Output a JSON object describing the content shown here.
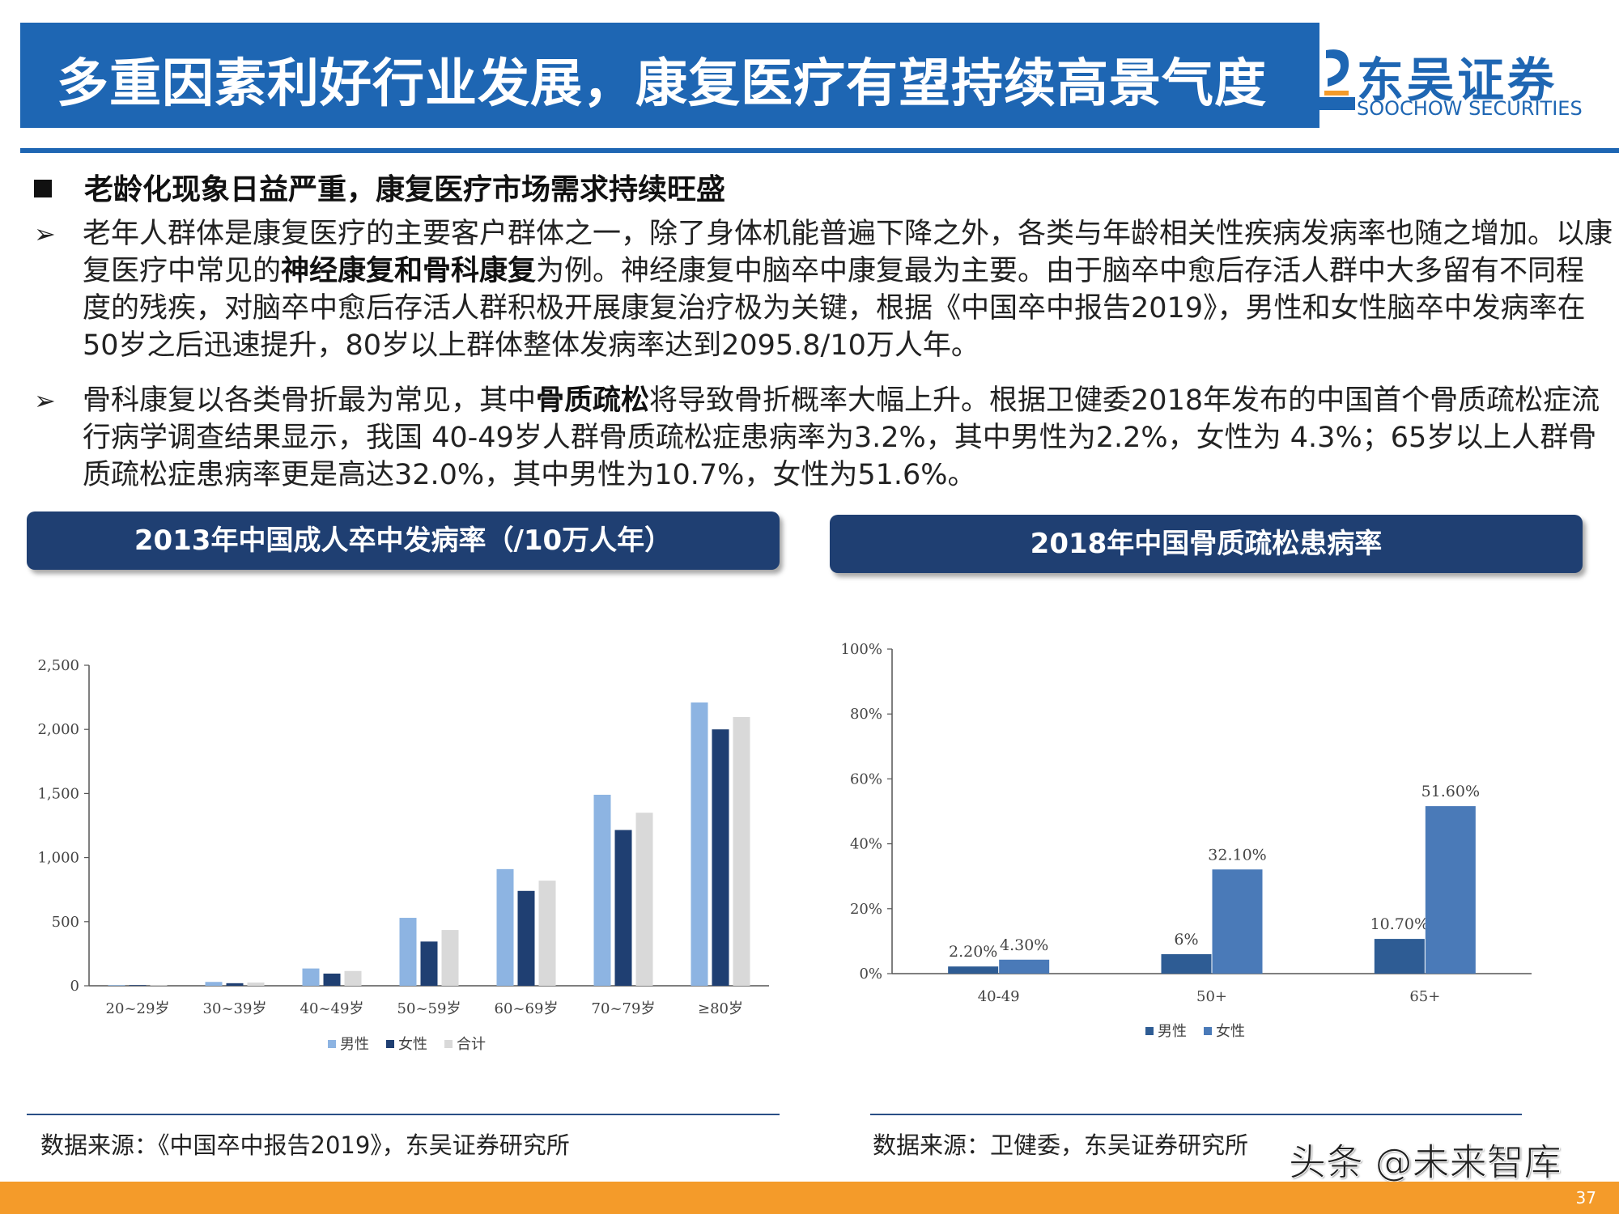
{
  "header": {
    "title": "多重因素利好行业发展，康复医疗有望持续高景气度",
    "logo_cn": "东吴证券",
    "logo_en": "SOOCHOW SECURITIES"
  },
  "heading": "老龄化现象日益严重，康复医疗市场需求持续旺盛",
  "bullet_symbol": "➢",
  "para1": {
    "t1": "老年人群体是康复医疗的主要客户群体之一，除了身体机能普遍下降之外，各类与年龄相关性疾病发病率也随之增加。以康复医疗中常见的",
    "b1": "神经康复和骨科康复",
    "t2": "为例。神经康复中脑卒中康复最为主要。由于脑卒中愈后存活人群中大多留有不同程度的残疾，对脑卒中愈后存活人群积极开展康复治疗极为关键，根据《中国卒中报告2019》，男性和女性脑卒中发病率在50岁之后迅速提升，80岁以上群体整体发病率达到2095.8/10万人年。"
  },
  "para2": {
    "t1": "骨科康复以各类骨折最为常见，其中",
    "b1": "骨质疏松",
    "t2": "将导致骨折概率大幅上升。根据卫健委2018年发布的中国首个骨质疏松症流行病学调查结果显示，我国 40-49岁人群骨质疏松症患病率为3.2%，其中男性为2.2%，女性为 4.3%；65岁以上人群骨质疏松症患病率更是高达32.0%，其中男性为10.7%，女性为51.6%。"
  },
  "left_panel": {
    "title": "2013年中国成人卒中发病率（/10万人年）",
    "source": "数据来源：《中国卒中报告2019》，东吴证券研究所"
  },
  "right_panel": {
    "title": "2018年中国骨质疏松患病率",
    "source": "数据来源：卫健委，东吴证券研究所"
  },
  "watermark": "头条 @未来智库",
  "page_number": "37",
  "colors": {
    "brand_blue": "#1e66b3",
    "panel_navy": "#1f3f72",
    "footer_orange": "#f49b2a"
  },
  "chart_data": [
    {
      "type": "bar",
      "categories": [
        "20~29岁",
        "30~39岁",
        "40~49岁",
        "50~59岁",
        "60~69岁",
        "70~79岁",
        "≥80岁"
      ],
      "series": [
        {
          "name": "男性",
          "color": "#8db4e2",
          "values": [
            5,
            30,
            135,
            530,
            910,
            1490,
            2210
          ]
        },
        {
          "name": "女性",
          "color": "#1f3f72",
          "values": [
            5,
            20,
            95,
            345,
            740,
            1215,
            2000
          ]
        },
        {
          "name": "合计",
          "color": "#d9d9d9",
          "values": [
            5,
            25,
            115,
            435,
            820,
            1350,
            2096
          ]
        }
      ],
      "ylim": [
        0,
        2500
      ],
      "yticks": [
        "0",
        "500",
        "1,000",
        "1,500",
        "2,000",
        "2,500"
      ],
      "legend": "bottom"
    },
    {
      "type": "bar",
      "categories": [
        "40-49",
        "50+",
        "65+"
      ],
      "series": [
        {
          "name": "男性",
          "color": "#2e5c94",
          "values": [
            2.2,
            6,
            10.7
          ],
          "labels": [
            "2.20%",
            "6%",
            "10.70%"
          ]
        },
        {
          "name": "女性",
          "color": "#4a7ab8",
          "values": [
            4.3,
            32.1,
            51.6
          ],
          "labels": [
            "4.30%",
            "32.10%",
            "51.60%"
          ]
        }
      ],
      "ylim": [
        0,
        100
      ],
      "yticks": [
        "0%",
        "20%",
        "40%",
        "60%",
        "80%",
        "100%"
      ],
      "legend": "bottom"
    }
  ]
}
